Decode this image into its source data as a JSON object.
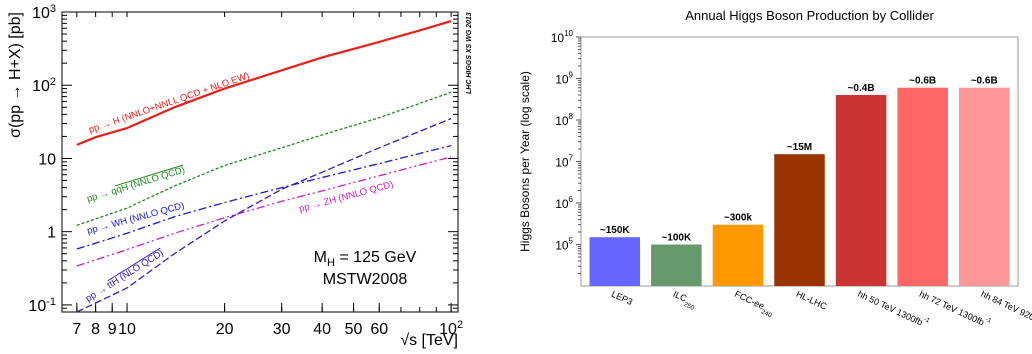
{
  "chart_data": [
    {
      "type": "line",
      "title": "",
      "xlabel": "√s [TeV]",
      "ylabel": "σ(pp → H+X) [pb]",
      "xscale": "log",
      "yscale": "log",
      "xlim": [
        6.3,
        105
      ],
      "ylim": [
        0.08,
        1000
      ],
      "xticks": [
        {
          "v": 7,
          "label": "7"
        },
        {
          "v": 8,
          "label": "8"
        },
        {
          "v": 9,
          "label": "9"
        },
        {
          "v": 10,
          "label": "10"
        },
        {
          "v": 20,
          "label": "20"
        },
        {
          "v": 30,
          "label": "30"
        },
        {
          "v": 40,
          "label": "40"
        },
        {
          "v": 50,
          "label": "50"
        },
        {
          "v": 60,
          "label": "60"
        },
        {
          "v": 100,
          "label": "10",
          "sup": "2"
        }
      ],
      "yticks": [
        {
          "v": 0.1,
          "label": "10",
          "sup": "-1"
        },
        {
          "v": 1,
          "label": "1"
        },
        {
          "v": 10,
          "label": "10"
        },
        {
          "v": 100,
          "label": "10",
          "sup": "2"
        },
        {
          "v": 1000,
          "label": "10",
          "sup": "3"
        }
      ],
      "series": [
        {
          "name": "pp → H (NNLO+NNLL QCD + NLO EW)",
          "color": "#e8201a",
          "dash": "",
          "width": 2.2,
          "x": [
            7,
            8,
            10,
            14,
            20,
            30,
            40,
            60,
            80,
            100
          ],
          "y": [
            15.3,
            19.5,
            26,
            50,
            90,
            160,
            240,
            390,
            560,
            750
          ]
        },
        {
          "name": "pp → qqH (NNLO QCD)",
          "color": "#1a8a1a",
          "dash": "3,2",
          "width": 1.3,
          "x": [
            7,
            10,
            14,
            20,
            30,
            40,
            60,
            100
          ],
          "y": [
            1.22,
            2.1,
            4.2,
            8.0,
            14,
            21,
            36,
            80
          ]
        },
        {
          "name": "pp → WH (NNLO QCD)",
          "color": "#1a1acc",
          "dash": "8,3,2,3",
          "width": 1.3,
          "x": [
            7,
            10,
            14,
            20,
            30,
            40,
            60,
            100
          ],
          "y": [
            0.58,
            0.95,
            1.6,
            2.5,
            4.0,
            5.5,
            8.5,
            15
          ]
        },
        {
          "name": "pp → ZH (NNLO QCD)",
          "color": "#cc1acc",
          "dash": "8,3,2,3,2,3",
          "width": 1.3,
          "x": [
            7,
            10,
            14,
            20,
            30,
            40,
            60,
            100
          ],
          "y": [
            0.34,
            0.57,
            0.95,
            1.55,
            2.6,
            3.6,
            5.8,
            10.5
          ]
        },
        {
          "name": "pp → ttH (NLO QCD)",
          "color": "#3a1ab8",
          "dash": "7,3",
          "width": 1.3,
          "x": [
            7,
            10,
            14,
            20,
            30,
            40,
            60,
            100
          ],
          "y": [
            0.08,
            0.17,
            0.5,
            1.4,
            3.8,
            6.5,
            14,
            35
          ]
        }
      ],
      "series_labels": [
        {
          "parts": [
            "pp → H (NNLO+NNLL QCD + NLO EW)"
          ],
          "color": "#e8201a"
        },
        {
          "parts": [
            "pp → q",
            "qH (NNLO QCD)"
          ],
          "color": "#1a8a1a"
        },
        {
          "parts": [
            "pp → WH (NNLO QCD)"
          ],
          "color": "#1a1acc"
        },
        {
          "parts": [
            "pp → ZH (NNLO QCD)"
          ],
          "color": "#cc1acc"
        },
        {
          "parts": [
            "pp → t",
            "tH (NLO QCD)"
          ],
          "color": "#3a1ab8"
        }
      ],
      "annotations": {
        "mass_main": "M",
        "mass_sub": "H",
        "mass_value": " = 125 GeV",
        "pdf": "MSTW2008",
        "watermark": "LHC HIGGS XS WG 2013"
      }
    },
    {
      "type": "bar",
      "title": "Annual Higgs Boson Production by Collider",
      "xlabel": "",
      "ylabel": "Higgs Bosons per Year (log scale)",
      "yscale": "log",
      "ylim": [
        10000,
        10000000000
      ],
      "yticks": [
        {
          "v": 100000,
          "label": "10",
          "sup": "5"
        },
        {
          "v": 1000000,
          "label": "10",
          "sup": "6"
        },
        {
          "v": 10000000,
          "label": "10",
          "sup": "7"
        },
        {
          "v": 100000000,
          "label": "10",
          "sup": "8"
        },
        {
          "v": 1000000000,
          "label": "10",
          "sup": "9"
        },
        {
          "v": 10000000000,
          "label": "10",
          "sup": "10"
        }
      ],
      "categories": [
        {
          "parts": [
            "LEP3"
          ]
        },
        {
          "parts": [
            "ILC",
            "250"
          ]
        },
        {
          "parts": [
            "FCC-ee",
            "240"
          ]
        },
        {
          "parts": [
            "HL-LHC"
          ]
        },
        {
          "parts": [
            "hh 50 TeV 1300fb",
            "-1"
          ]
        },
        {
          "parts": [
            "hh 72 TeV 1300fb",
            "-1"
          ]
        },
        {
          "parts": [
            "hh 84 TeV 920fb",
            "-1"
          ]
        }
      ],
      "values": [
        150000,
        100000,
        300000,
        15000000,
        400000000,
        600000000,
        600000000
      ],
      "value_labels": [
        "~150K",
        "~100K",
        "~300k",
        "~15M",
        "~0.4B",
        "~0.6B",
        "~0.6B"
      ],
      "colors": [
        "#6666ff",
        "#66996b",
        "#ff9900",
        "#993300",
        "#cc3333",
        "#ff6666",
        "#ff9999"
      ]
    }
  ]
}
